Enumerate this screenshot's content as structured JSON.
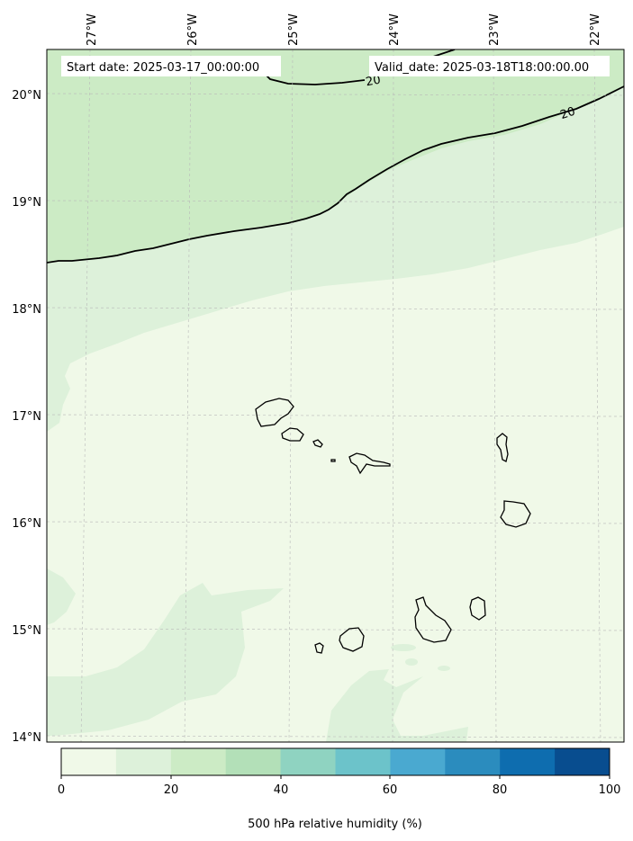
{
  "map": {
    "start_date_label": "Start date: 2025-03-17_00:00:00",
    "valid_date_label": "Valid_date: 2025-03-18T18:00:00.00",
    "lon_labels": [
      "27°W",
      "26°W",
      "25°W",
      "24°W",
      "23°W",
      "22°W"
    ],
    "lat_labels": [
      "20°N",
      "19°N",
      "18°N",
      "17°N",
      "16°N",
      "15°N",
      "14°N"
    ],
    "contour_labels": [
      "20",
      "20"
    ],
    "colors": {
      "level_0_10": "#f0f9e8",
      "level_10_20": "#ddf1da",
      "level_20_30": "#ccebc5",
      "contour": "#000000"
    }
  },
  "colorbar": {
    "label": "500 hPa relative humidity (%)",
    "tick_labels": [
      "0",
      "20",
      "40",
      "60",
      "80",
      "100"
    ],
    "colors": [
      "#f0f9e8",
      "#ddf1da",
      "#ccebc5",
      "#b3e0b8",
      "#8fd3c1",
      "#6cc3ca",
      "#4aa9d0",
      "#2b8cbe",
      "#0e6daf",
      "#084d8f"
    ]
  }
}
